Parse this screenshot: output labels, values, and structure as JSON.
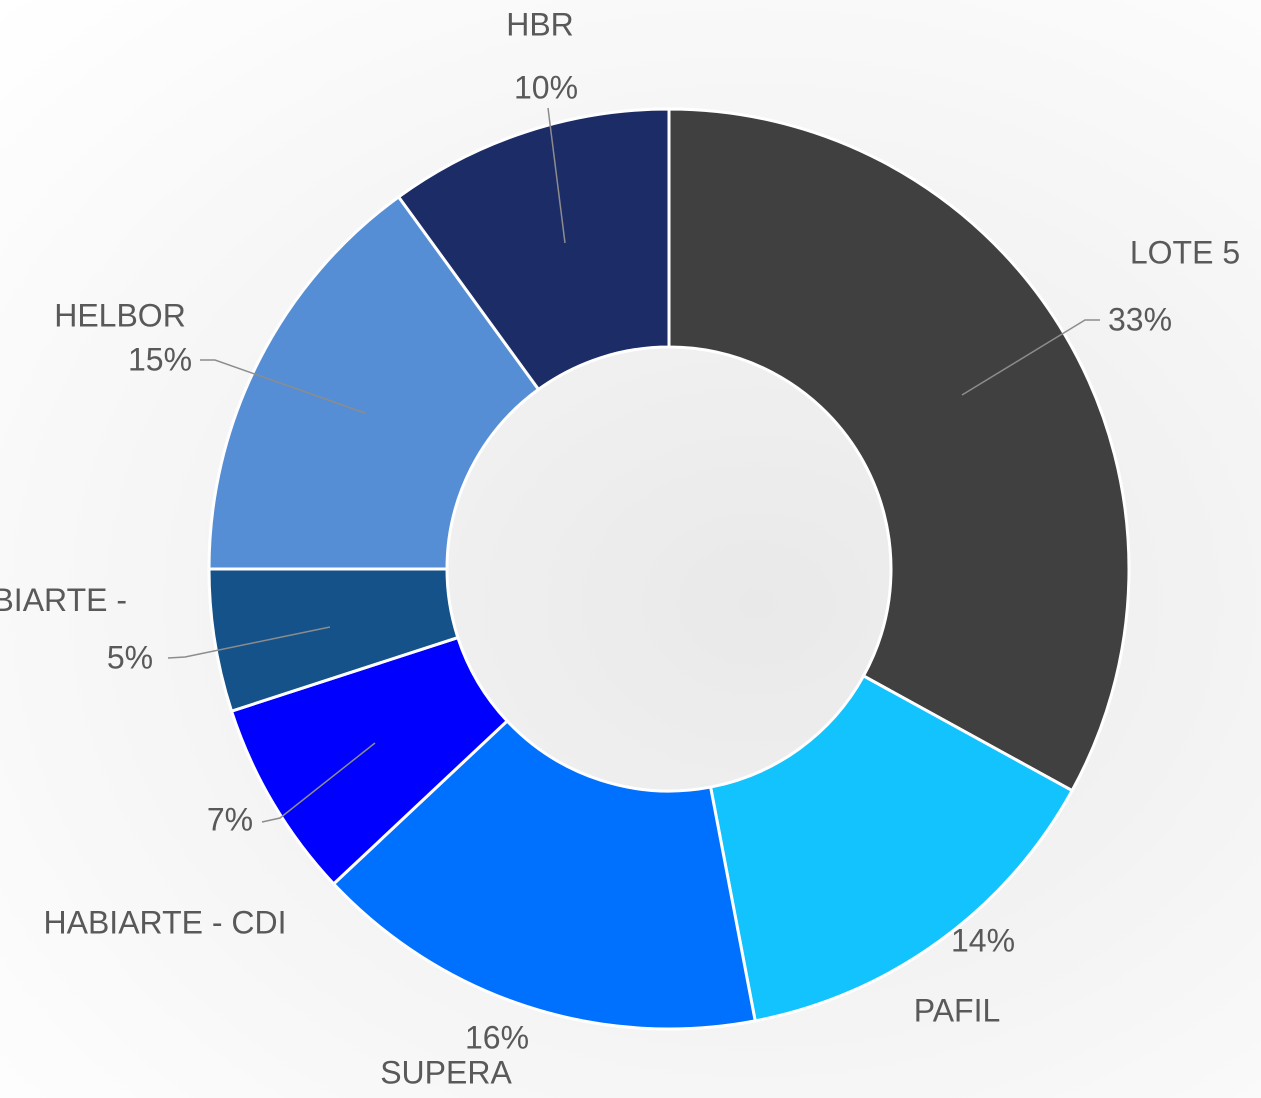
{
  "chart_data": {
    "type": "donut",
    "categories": [
      "LOTE 5",
      "PAFIL",
      "SUPERA",
      "HABIARTE - CDI",
      "HABIARTE - CA",
      "HELBOR",
      "HBR"
    ],
    "values": [
      33,
      14,
      16,
      7,
      5,
      15,
      10
    ],
    "value_labels": [
      "33%",
      "14%",
      "16%",
      "7%",
      "5%",
      "15%",
      "10%"
    ],
    "colors": [
      "#404040",
      "#13c3fd",
      "#0070ff",
      "#0000ff",
      "#15528a",
      "#558ed5",
      "#1b2c66"
    ]
  }
}
